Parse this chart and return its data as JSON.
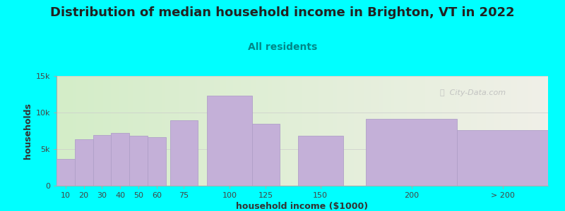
{
  "title": "Distribution of median household income in Brighton, VT in 2022",
  "subtitle": "All residents",
  "xlabel": "household income ($1000)",
  "ylabel": "households",
  "background_color": "#00FFFF",
  "plot_bg_color_left": "#d4edc8",
  "plot_bg_color_right": "#f0f0e8",
  "bar_color": "#c4b0d8",
  "bar_edge_color": "#b0a0c8",
  "ylim": [
    0,
    15000
  ],
  "yticks": [
    0,
    5000,
    10000,
    15000
  ],
  "ytick_labels": [
    "0",
    "5k",
    "10k",
    "15k"
  ],
  "categories": [
    "10",
    "20",
    "30",
    "40",
    "50",
    "60",
    "75",
    "100",
    "125",
    "150",
    "200",
    "> 200"
  ],
  "values": [
    3700,
    6300,
    6900,
    7200,
    6800,
    6600,
    8900,
    12300,
    8500,
    6800,
    9100,
    7600
  ],
  "bar_lefts": [
    5,
    15,
    25,
    35,
    45,
    55,
    67.5,
    87.5,
    112.5,
    137.5,
    175,
    225
  ],
  "bar_widths": [
    10,
    10,
    10,
    10,
    10,
    10,
    15,
    25,
    15,
    25,
    50,
    50
  ],
  "xlim": [
    5,
    275
  ],
  "title_fontsize": 13,
  "subtitle_fontsize": 10,
  "axis_label_fontsize": 9,
  "tick_fontsize": 8,
  "watermark_text": "ⓘ  City-Data.com"
}
